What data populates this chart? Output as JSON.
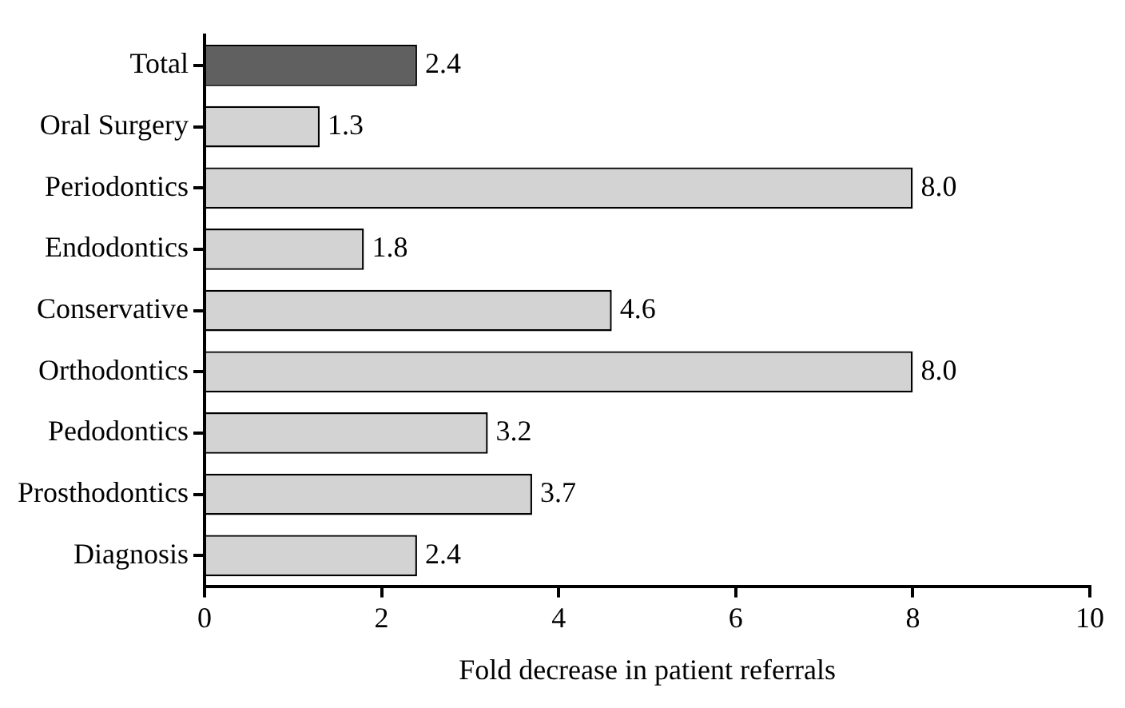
{
  "chart_data": {
    "type": "bar",
    "orientation": "horizontal",
    "xlabel": "Fold decrease in patient referrals",
    "categories": [
      "Total",
      "Oral Surgery",
      "Periodontics",
      "Endodontics",
      "Conservative",
      "Orthodontics",
      "Pedodontics",
      "Prosthodontics",
      "Diagnosis"
    ],
    "values": [
      2.4,
      1.3,
      8.0,
      1.8,
      4.6,
      8.0,
      3.2,
      3.7,
      2.4
    ],
    "colors": [
      "#606060",
      "#d3d3d3",
      "#d3d3d3",
      "#d3d3d3",
      "#d3d3d3",
      "#d3d3d3",
      "#d3d3d3",
      "#d3d3d3",
      "#d3d3d3"
    ],
    "value_labels": [
      "2.4",
      "1.3",
      "8.0",
      "1.8",
      "4.6",
      "8.0",
      "3.2",
      "3.7",
      "2.4"
    ],
    "xlim": [
      0,
      10
    ],
    "xticks": [
      0,
      2,
      4,
      6,
      8,
      10
    ],
    "grid": false,
    "legend": false
  }
}
